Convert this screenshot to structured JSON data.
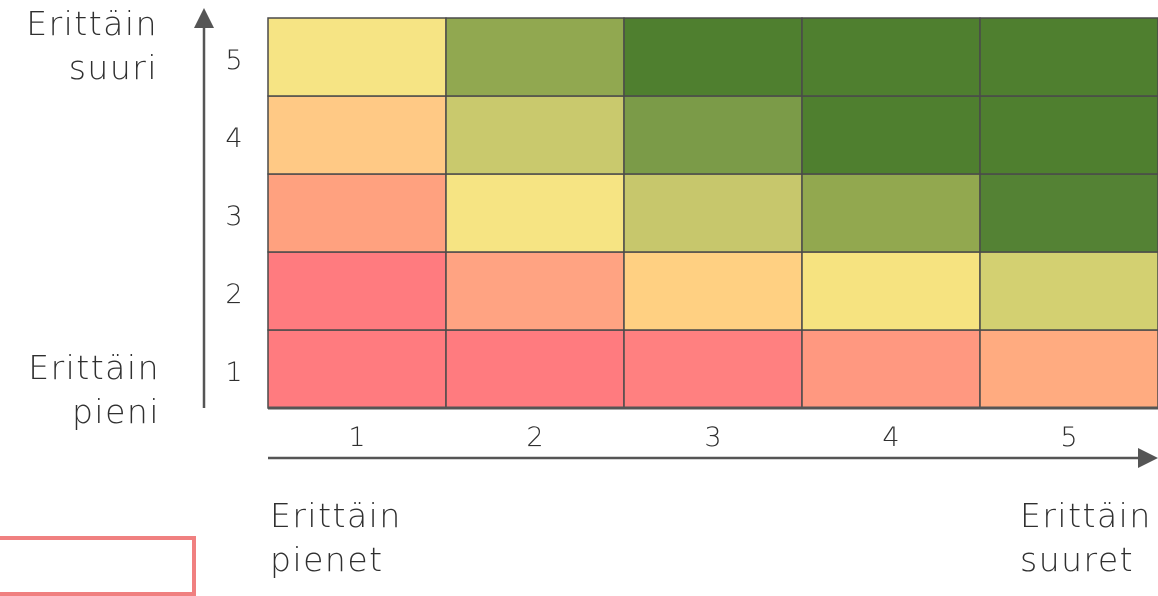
{
  "chart_data": {
    "type": "heatmap",
    "x": [
      1,
      2,
      3,
      4,
      5
    ],
    "y": [
      1,
      2,
      3,
      4,
      5
    ],
    "ylabel_top": [
      "Erittäin",
      "suuri"
    ],
    "ylabel_bottom": [
      "Erittäin",
      "pieni"
    ],
    "xlabel_left": [
      "Erittäin",
      "pienet"
    ],
    "xlabel_right": [
      "Erittäin",
      "suuret"
    ],
    "colors": [
      [
        "#ff7b7f",
        "#ff7b7f",
        "#ff8080",
        "#ff9880",
        "#ffab80"
      ],
      [
        "#ff7b7f",
        "#ffa382",
        "#ffd082",
        "#f6e380",
        "#d3d071"
      ],
      [
        "#ffa17f",
        "#f6e483",
        "#c7c76c",
        "#92a84f",
        "#548234"
      ],
      [
        "#ffc985",
        "#c9c96d",
        "#7b9b48",
        "#4f7f2f",
        "#4f7f2f"
      ],
      [
        "#f6e484",
        "#91a850",
        "#4f7f2f",
        "#4f7f2f",
        "#4f7f2f"
      ]
    ]
  }
}
